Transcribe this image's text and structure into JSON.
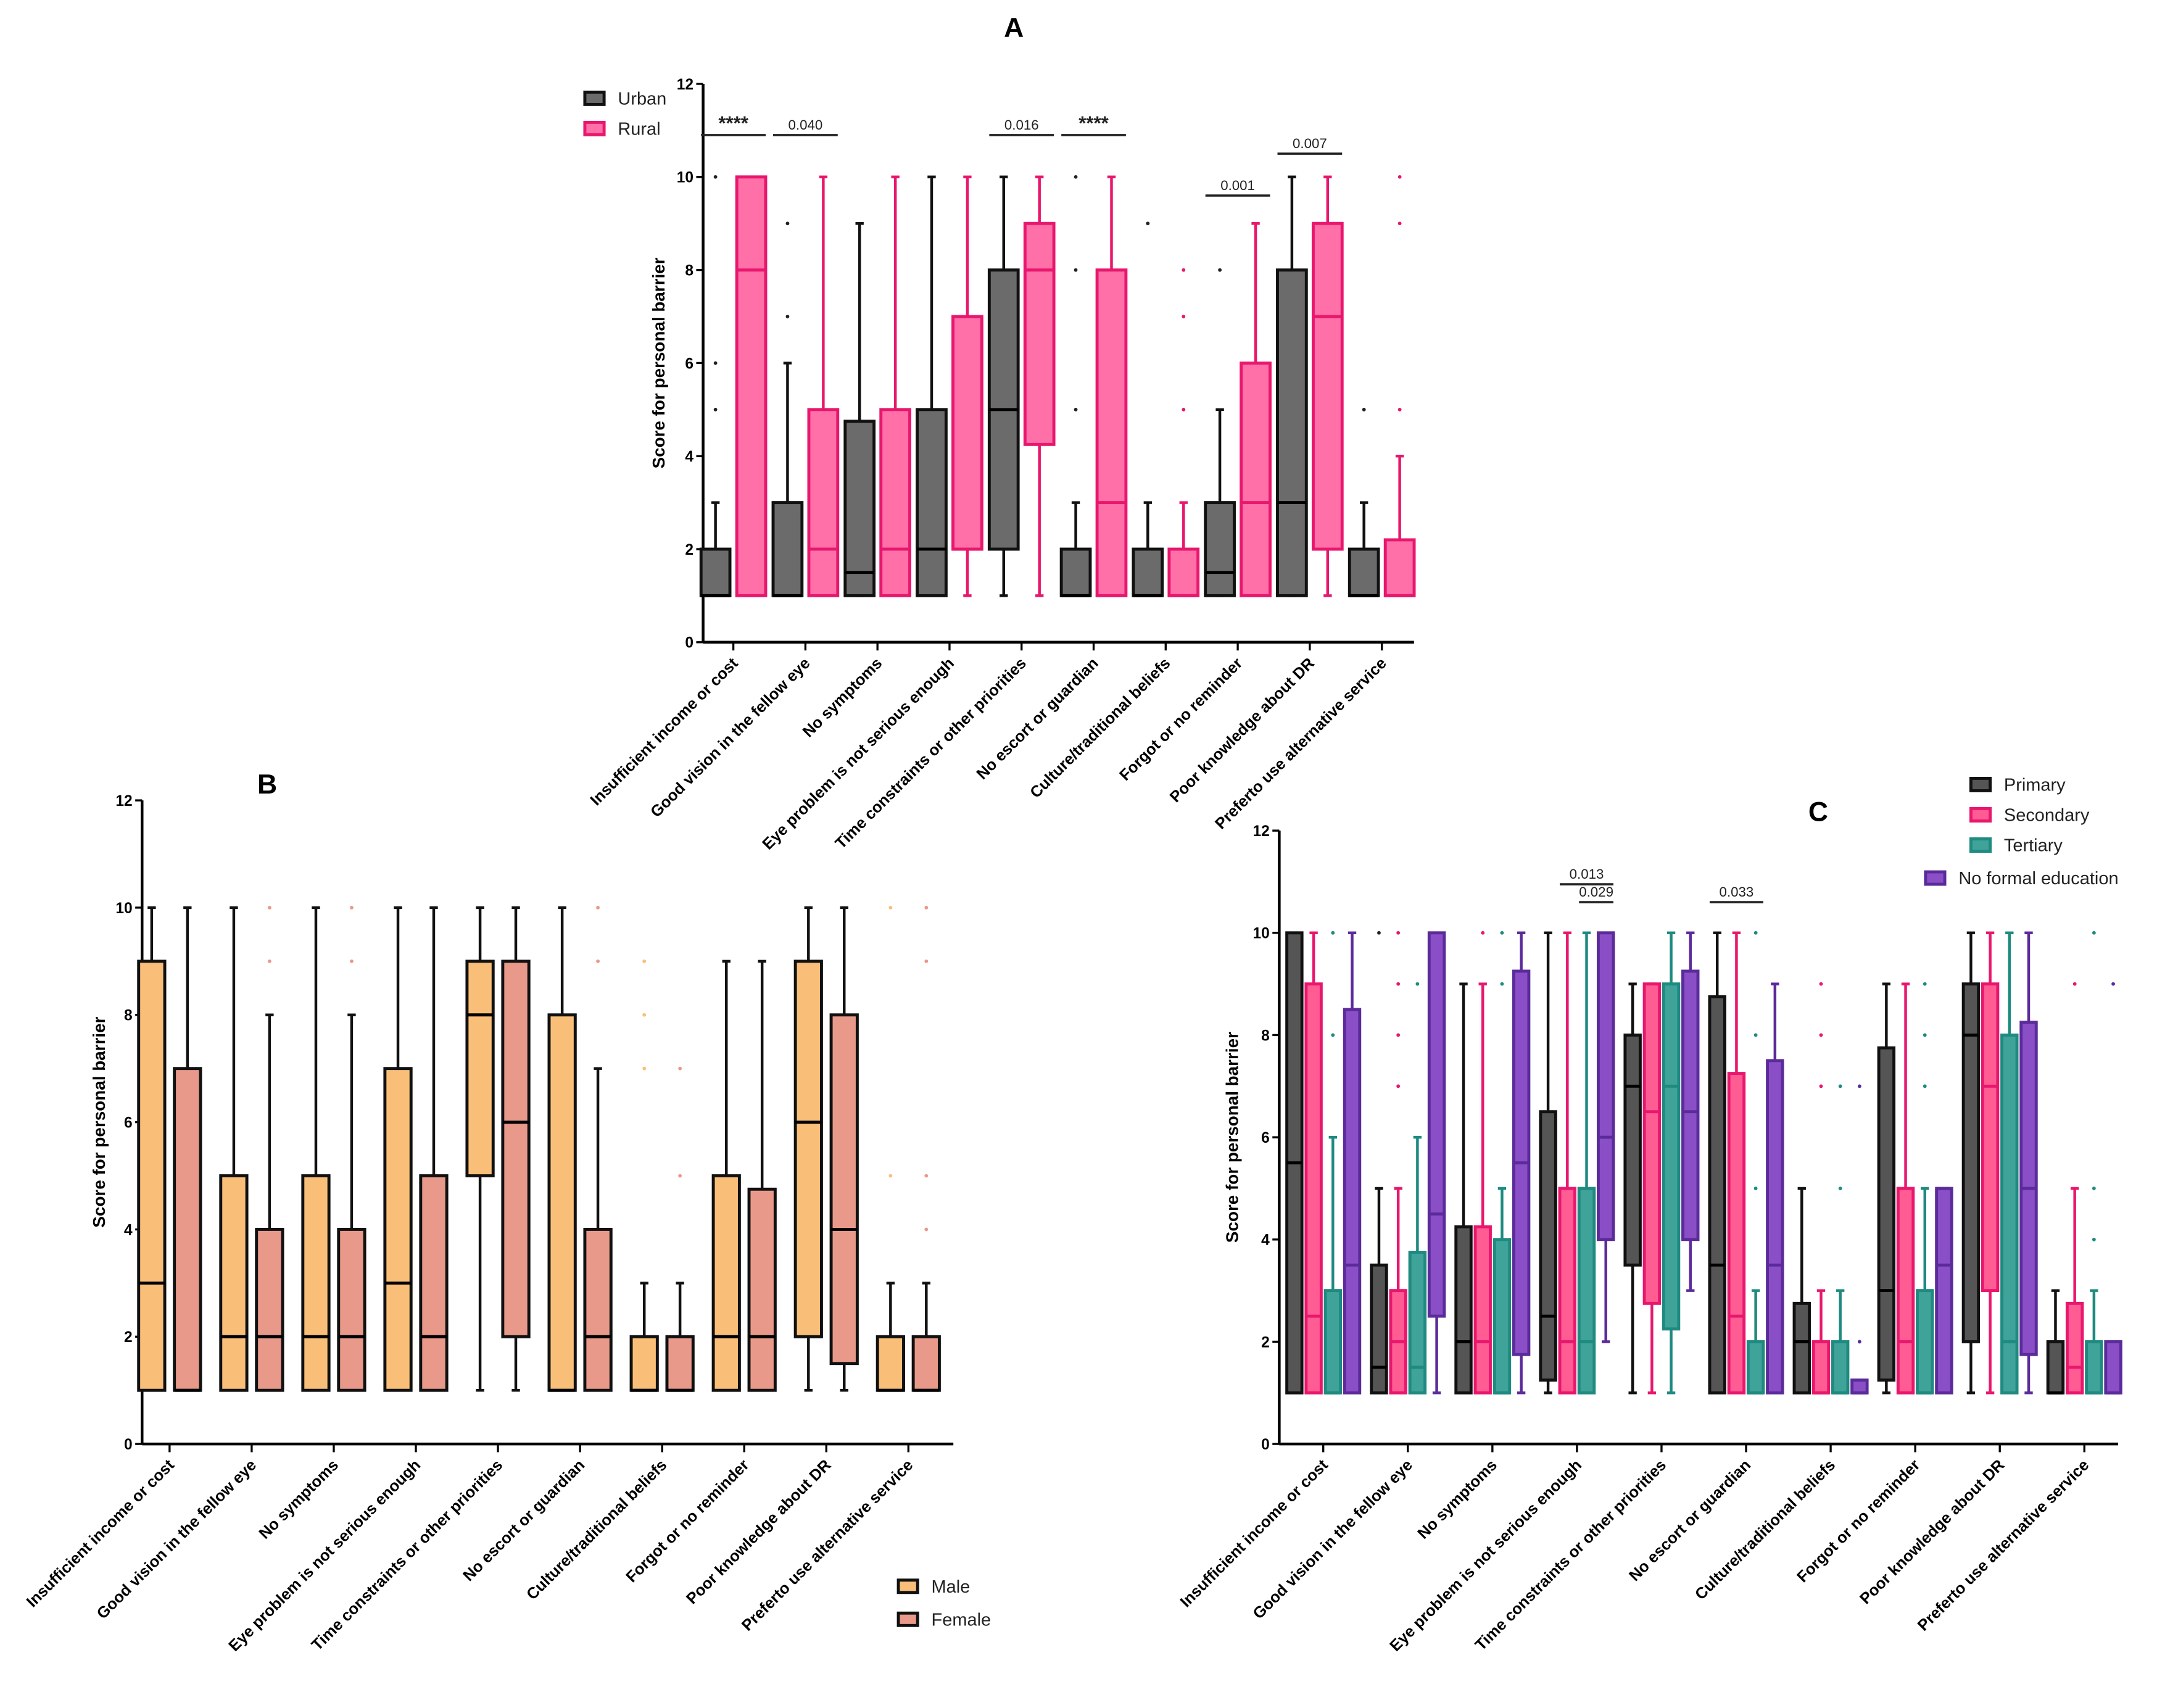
{
  "chart_data": [
    {
      "type": "box",
      "panel": "A",
      "title": "A",
      "ylabel": "Score for personal barrier",
      "xlabel": "",
      "ylim": [
        0,
        12
      ],
      "yticks": [
        0,
        2,
        4,
        6,
        8,
        10,
        12
      ],
      "grid": false,
      "legend_position": "top-left",
      "categories": [
        "Insufficient income or cost",
        "Good vision in the fellow eye",
        "No symptoms",
        "Eye problem is not serious enough",
        "Time constraints or other priorities",
        "No escort or guardian",
        "Culture/traditional beliefs",
        "Forgot or no reminder",
        "Poor knowledge about DR",
        "Preferto use alternative service"
      ],
      "series": [
        {
          "name": "Urban",
          "fill": "#6b6b6b",
          "stroke": "#111111",
          "boxes": [
            [
              1,
              1,
              1,
              2,
              3
            ],
            [
              1,
              1,
              1,
              3,
              6
            ],
            [
              1,
              1,
              1.5,
              4.75,
              9
            ],
            [
              1,
              1,
              2,
              5,
              10
            ],
            [
              1,
              2,
              5,
              8,
              10
            ],
            [
              1,
              1,
              1,
              2,
              3
            ],
            [
              1,
              1,
              1,
              2,
              3
            ],
            [
              1,
              1,
              1.5,
              3,
              5
            ],
            [
              1,
              1,
              3,
              8,
              10
            ],
            [
              1,
              1,
              1,
              2,
              3
            ]
          ],
          "outliers": [
            [
              5,
              6,
              10
            ],
            [
              7,
              9
            ],
            [],
            [],
            [],
            [
              5,
              8,
              10
            ],
            [
              9
            ],
            [
              8
            ],
            [],
            [
              5
            ]
          ]
        },
        {
          "name": "Rural",
          "fill": "#ff6fa8",
          "stroke": "#e8176d",
          "boxes": [
            [
              1,
              1,
              8,
              10,
              10
            ],
            [
              1,
              1,
              2,
              5,
              10
            ],
            [
              1,
              1,
              2,
              5,
              10
            ],
            [
              1,
              2,
              2,
              7,
              10
            ],
            [
              1,
              4.25,
              8,
              9,
              10
            ],
            [
              1,
              1,
              3,
              8,
              10
            ],
            [
              1,
              1,
              1,
              2,
              3
            ],
            [
              1,
              1,
              3,
              6,
              9
            ],
            [
              1,
              2,
              7,
              9,
              10
            ],
            [
              1,
              1,
              1,
              2.2,
              4
            ]
          ],
          "outliers": [
            [],
            [],
            [],
            [],
            [],
            [],
            [
              5,
              7,
              8
            ],
            [],
            [],
            [
              5,
              9,
              10
            ]
          ]
        }
      ],
      "significance": [
        {
          "group": 0,
          "from": 0,
          "to": 1,
          "label": "****",
          "level": 10.9
        },
        {
          "group": 1,
          "from": 0,
          "to": 1,
          "label": "0.040",
          "level": 10.9
        },
        {
          "group": 4,
          "from": 0,
          "to": 1,
          "label": "0.016",
          "level": 10.9
        },
        {
          "group": 5,
          "from": 0,
          "to": 1,
          "label": "****",
          "level": 10.9
        },
        {
          "group": 7,
          "from": 0,
          "to": 1,
          "label": "0.001",
          "level": 9.6
        },
        {
          "group": 8,
          "from": 0,
          "to": 1,
          "label": "0.007",
          "level": 10.5
        }
      ]
    },
    {
      "type": "box",
      "panel": "B",
      "title": "B",
      "ylabel": "Score for personal barrier",
      "xlabel": "",
      "ylim": [
        0,
        12
      ],
      "yticks": [
        0,
        2,
        4,
        6,
        8,
        10,
        12
      ],
      "grid": false,
      "legend_position": "bottom-right",
      "categories": [
        "Insufficient income or cost",
        "Good vision in the fellow eye",
        "No symptoms",
        "Eye problem is not serious enough",
        "Time constraints or other priorities",
        "No escort or guardian",
        "Culture/traditional beliefs",
        "Forgot or no reminder",
        "Poor knowledge about DR",
        "Preferto use alternative service"
      ],
      "series": [
        {
          "name": "Male",
          "fill": "#f9bf78",
          "stroke": "#111111",
          "boxes": [
            [
              1,
              1,
              3,
              9,
              10
            ],
            [
              1,
              1,
              2,
              5,
              10
            ],
            [
              1,
              1,
              2,
              5,
              10
            ],
            [
              1,
              1,
              3,
              7,
              10
            ],
            [
              1,
              5,
              8,
              9,
              10
            ],
            [
              1,
              1,
              1,
              8,
              10
            ],
            [
              1,
              1,
              1,
              2,
              3
            ],
            [
              1,
              1,
              2,
              5,
              9
            ],
            [
              1,
              2,
              6,
              9,
              10
            ],
            [
              1,
              1,
              1,
              2,
              3
            ]
          ],
          "outliers": [
            [],
            [],
            [],
            [],
            [],
            [],
            [
              7,
              8,
              9
            ],
            [],
            [],
            [
              5,
              10
            ]
          ]
        },
        {
          "name": "Female",
          "fill": "#e8998a",
          "stroke": "#111111",
          "boxes": [
            [
              1,
              1,
              1,
              7,
              10
            ],
            [
              1,
              1,
              2,
              4,
              8
            ],
            [
              1,
              1,
              2,
              4,
              8
            ],
            [
              1,
              1,
              2,
              5,
              10
            ],
            [
              1,
              2,
              6,
              9,
              10
            ],
            [
              1,
              1,
              2,
              4,
              7
            ],
            [
              1,
              1,
              1,
              2,
              3
            ],
            [
              1,
              1,
              2,
              4.75,
              9
            ],
            [
              1,
              1.5,
              4,
              8,
              10
            ],
            [
              1,
              1,
              1,
              2,
              3
            ]
          ],
          "outliers": [
            [],
            [
              9,
              10
            ],
            [
              9,
              10
            ],
            [],
            [],
            [
              9,
              10
            ],
            [
              5,
              7
            ],
            [],
            [],
            [
              4,
              5,
              9,
              10
            ]
          ]
        }
      ],
      "significance": []
    },
    {
      "type": "box",
      "panel": "C",
      "title": "C",
      "ylabel": "Score for personal barrier",
      "xlabel": "",
      "ylim": [
        0,
        12
      ],
      "yticks": [
        0,
        2,
        4,
        6,
        8,
        10,
        12
      ],
      "grid": false,
      "legend_position": "top-right",
      "categories": [
        "Insufficient income or cost",
        "Good vision in the fellow eye",
        "No symptoms",
        "Eye problem is not serious enough",
        "Time constraints or other priorities",
        "No escort or guardian",
        "Culture/traditional beliefs",
        "Forgot or no reminder",
        "Poor knowledge about DR",
        "Preferto use alternative service"
      ],
      "series": [
        {
          "name": "Primary",
          "fill": "#555555",
          "stroke": "#111111",
          "boxes": [
            [
              1,
              1,
              5.5,
              10,
              10
            ],
            [
              1,
              1,
              1.5,
              3.5,
              5
            ],
            [
              1,
              1,
              2,
              4.25,
              9
            ],
            [
              1,
              1.25,
              2.5,
              6.5,
              10
            ],
            [
              1,
              3.5,
              7,
              8,
              9
            ],
            [
              1,
              1,
              3.5,
              8.75,
              10
            ],
            [
              1,
              1,
              2,
              2.75,
              5
            ],
            [
              1,
              1.25,
              3,
              7.75,
              9
            ],
            [
              1,
              2,
              8,
              9,
              10
            ],
            [
              1,
              1,
              1,
              2,
              3
            ]
          ],
          "outliers": [
            [],
            [
              10
            ],
            [],
            [],
            [],
            [],
            [],
            [],
            [],
            []
          ]
        },
        {
          "name": "Secondary",
          "fill": "#ff5c93",
          "stroke": "#e8176d",
          "boxes": [
            [
              1,
              1,
              2.5,
              9,
              10
            ],
            [
              1,
              1,
              2,
              3,
              5
            ],
            [
              1,
              1,
              2,
              4.25,
              9
            ],
            [
              1,
              1,
              2,
              5,
              10
            ],
            [
              1,
              2.75,
              6.5,
              9,
              9
            ],
            [
              1,
              1,
              2.5,
              7.25,
              10
            ],
            [
              1,
              1,
              1,
              2,
              3
            ],
            [
              1,
              1,
              2,
              5,
              9
            ],
            [
              1,
              3,
              7,
              9,
              10
            ],
            [
              1,
              1,
              1.5,
              2.75,
              5
            ]
          ],
          "outliers": [
            [],
            [
              7,
              8,
              9,
              10
            ],
            [
              10
            ],
            [],
            [],
            [],
            [
              7,
              8,
              9
            ],
            [],
            [],
            [
              9
            ]
          ]
        },
        {
          "name": "Tertiary",
          "fill": "#3fa39a",
          "stroke": "#1e8a80",
          "boxes": [
            [
              1,
              1,
              1,
              3,
              6
            ],
            [
              1,
              1,
              1.5,
              3.75,
              6
            ],
            [
              1,
              1,
              1,
              4,
              5
            ],
            [
              1,
              1,
              2,
              5,
              10
            ],
            [
              1,
              2.25,
              7,
              9,
              10
            ],
            [
              1,
              1,
              1,
              2,
              3
            ],
            [
              1,
              1,
              1,
              2,
              3
            ],
            [
              1,
              1,
              1,
              3,
              5
            ],
            [
              1,
              1,
              2,
              8,
              10
            ],
            [
              1,
              1,
              1,
              2,
              3
            ]
          ],
          "outliers": [
            [
              8,
              10
            ],
            [
              9
            ],
            [
              9,
              10
            ],
            [],
            [],
            [
              5,
              8,
              10
            ],
            [
              5,
              7
            ],
            [
              7,
              8,
              9
            ],
            [],
            [
              4,
              5,
              10
            ]
          ]
        },
        {
          "name": "No formal education",
          "fill": "#8a4fc7",
          "stroke": "#5b2b9a",
          "boxes": [
            [
              1,
              1,
              3.5,
              8.5,
              10
            ],
            [
              1,
              2.5,
              4.5,
              10,
              10
            ],
            [
              1,
              1.75,
              5.5,
              9.25,
              10
            ],
            [
              2,
              4,
              6,
              10,
              10
            ],
            [
              3,
              4,
              6.5,
              9.25,
              10
            ],
            [
              1,
              1,
              3.5,
              7.5,
              9
            ],
            [
              1,
              1,
              1,
              1.25,
              1.25
            ],
            [
              1,
              1,
              3.5,
              5,
              5
            ],
            [
              1,
              1.75,
              5,
              8.25,
              10
            ],
            [
              1,
              1,
              1,
              2,
              2
            ]
          ],
          "outliers": [
            [],
            [],
            [],
            [],
            [],
            [],
            [
              2,
              7
            ],
            [],
            [],
            [
              9
            ]
          ]
        }
      ],
      "significance": [
        {
          "group": 3,
          "from": 1,
          "to": 3,
          "label": "0.013",
          "level": 10.95
        },
        {
          "group": 3,
          "from": 2,
          "to": 3,
          "label": "0.029",
          "level": 10.6
        },
        {
          "group": 5,
          "from": 0,
          "to": 2,
          "label": "0.033",
          "level": 10.6
        }
      ]
    }
  ]
}
